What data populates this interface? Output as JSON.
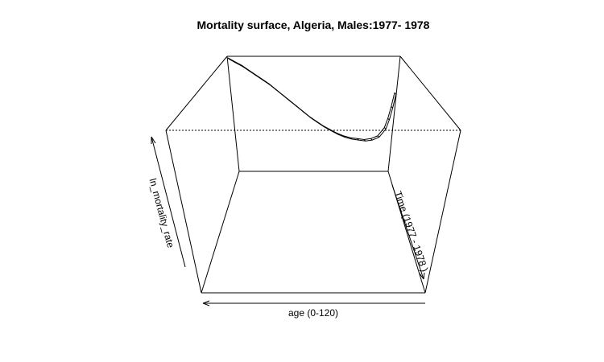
{
  "chart_data": {
    "type": "surface",
    "title": "Mortality surface, Algeria, Males:1977- 1978",
    "xlabel": "age (0-120)",
    "ylabel": "Time (1977 - 1978 )",
    "zlabel": "ln_mortality_rate",
    "xlim": [
      0,
      120
    ],
    "ylim": [
      1977,
      1978
    ],
    "series": [
      {
        "year": 1977,
        "points": [
          [
            0,
            1.0
          ],
          [
            4,
            0.96
          ],
          [
            8,
            0.92
          ],
          [
            12,
            0.87
          ],
          [
            16,
            0.82
          ],
          [
            20,
            0.77
          ],
          [
            24,
            0.72
          ],
          [
            28,
            0.66
          ],
          [
            32,
            0.6
          ],
          [
            36,
            0.54
          ],
          [
            40,
            0.48
          ],
          [
            44,
            0.42
          ],
          [
            48,
            0.36
          ],
          [
            52,
            0.31
          ],
          [
            56,
            0.26
          ],
          [
            60,
            0.22
          ],
          [
            64,
            0.18
          ],
          [
            68,
            0.15
          ],
          [
            72,
            0.13
          ],
          [
            76,
            0.12
          ],
          [
            80,
            0.11
          ],
          [
            84,
            0.12
          ],
          [
            88,
            0.15
          ],
          [
            92,
            0.24
          ],
          [
            94,
            0.34
          ],
          [
            96,
            0.47
          ],
          [
            98,
            0.62
          ]
        ]
      },
      {
        "year": 1978,
        "points": [
          [
            0,
            0.99
          ],
          [
            4,
            0.95
          ],
          [
            8,
            0.91
          ],
          [
            12,
            0.86
          ],
          [
            16,
            0.81
          ],
          [
            20,
            0.76
          ],
          [
            24,
            0.71
          ],
          [
            28,
            0.65
          ],
          [
            32,
            0.59
          ],
          [
            36,
            0.53
          ],
          [
            40,
            0.47
          ],
          [
            44,
            0.41
          ],
          [
            48,
            0.35
          ],
          [
            52,
            0.3
          ],
          [
            56,
            0.25
          ],
          [
            60,
            0.21
          ],
          [
            64,
            0.17
          ],
          [
            68,
            0.14
          ],
          [
            72,
            0.12
          ],
          [
            76,
            0.11
          ],
          [
            80,
            0.1
          ],
          [
            84,
            0.11
          ],
          [
            88,
            0.14
          ],
          [
            92,
            0.23
          ],
          [
            94,
            0.33
          ],
          [
            96,
            0.46
          ],
          [
            98,
            0.61
          ]
        ]
      }
    ]
  }
}
